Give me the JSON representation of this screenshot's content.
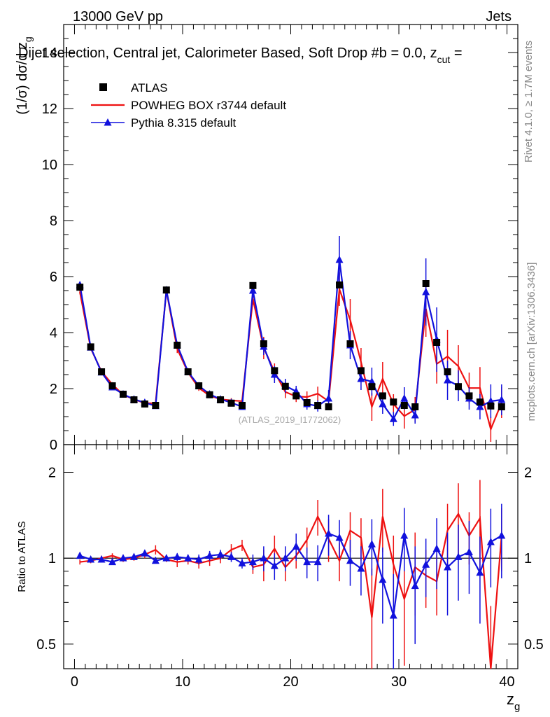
{
  "header": {
    "left": "13000 GeV pp",
    "right": "Jets",
    "title": "Dijet selection, Central jet, Calorimeter Based, Soft Drop #b = 0.0, z",
    "title_sub": "cut",
    "title_tail": " ="
  },
  "side": {
    "rivet": "Rivet 4.1.0, ≥ 1.7M events",
    "mcplots": "mcplots.cern.ch [arXiv:1306.3436]"
  },
  "watermark": "(ATLAS_2019_I1772062)",
  "colors": {
    "data": "#000000",
    "powheg": "#ee1111",
    "pythia": "#1111dd"
  },
  "chart_data": [
    {
      "type": "scatter",
      "name": "main",
      "ylabel": "(1/σ) dσ/d z_g",
      "ylabel_main": "(1/σ) dσ/d z",
      "ylabel_sub": "g",
      "xlim": [
        -1,
        41
      ],
      "ylim": [
        0,
        15
      ],
      "xticks": [
        0,
        10,
        20,
        30,
        40
      ],
      "yticks": [
        0,
        2,
        4,
        6,
        8,
        10,
        12,
        14
      ],
      "x": [
        0.5,
        1.5,
        2.5,
        3.5,
        4.5,
        5.5,
        6.5,
        7.5,
        8.5,
        9.5,
        10.5,
        11.5,
        12.5,
        13.5,
        14.5,
        15.5,
        16.5,
        17.5,
        18.5,
        19.5,
        20.5,
        21.5,
        22.5,
        23.5,
        24.5,
        25.5,
        26.5,
        27.5,
        28.5,
        29.5,
        30.5,
        31.5,
        32.5,
        33.5,
        34.5,
        35.5,
        36.5,
        37.5,
        38.5,
        39.5
      ],
      "series": [
        {
          "name": "ATLAS",
          "marker": "square",
          "values": [
            5.62,
            3.49,
            2.6,
            2.1,
            1.8,
            1.6,
            1.45,
            1.4,
            5.52,
            3.55,
            2.6,
            2.1,
            1.78,
            1.6,
            1.48,
            1.4,
            5.68,
            3.6,
            2.64,
            2.08,
            1.74,
            1.5,
            1.4,
            1.35,
            5.7,
            3.6,
            2.64,
            2.07,
            1.74,
            1.52,
            1.4,
            1.35,
            5.75,
            3.65,
            2.6,
            2.07,
            1.74,
            1.52,
            1.38,
            1.35
          ]
        },
        {
          "name": "POWHEG BOX r3744 default",
          "marker": "line",
          "values": [
            5.45,
            3.44,
            2.61,
            2.15,
            1.78,
            1.62,
            1.48,
            1.48,
            5.5,
            3.42,
            2.58,
            2.02,
            1.75,
            1.62,
            1.58,
            1.55,
            5.2,
            3.45,
            2.6,
            1.88,
            1.72,
            1.7,
            1.82,
            1.55,
            5.55,
            4.45,
            2.95,
            1.35,
            2.35,
            1.45,
            1.02,
            1.25,
            4.85,
            2.88,
            3.15,
            2.8,
            2.02,
            2.02,
            0.55,
            1.5
          ],
          "err": [
            0.08,
            0.08,
            0.08,
            0.08,
            0.06,
            0.06,
            0.06,
            0.06,
            0.1,
            0.15,
            0.1,
            0.1,
            0.08,
            0.06,
            0.08,
            0.08,
            0.2,
            0.4,
            0.3,
            0.22,
            0.2,
            0.2,
            0.25,
            0.25,
            0.6,
            0.75,
            0.5,
            0.5,
            0.6,
            0.35,
            0.45,
            0.45,
            1.0,
            0.7,
            0.95,
            0.75,
            0.55,
            0.75,
            0.45,
            0.55
          ]
        },
        {
          "name": "Pythia 8.315 default",
          "marker": "triangle",
          "values": [
            5.7,
            3.47,
            2.58,
            2.05,
            1.8,
            1.62,
            1.5,
            1.38,
            5.52,
            3.55,
            2.6,
            2.1,
            1.8,
            1.62,
            1.5,
            1.35,
            5.5,
            3.5,
            2.5,
            2.1,
            1.9,
            1.45,
            1.38,
            1.65,
            6.6,
            3.55,
            2.35,
            2.25,
            1.45,
            0.92,
            1.65,
            1.05,
            5.45,
            3.75,
            2.3,
            2.1,
            1.65,
            1.35,
            1.55,
            1.6
          ],
          "err": [
            0.08,
            0.08,
            0.08,
            0.1,
            0.06,
            0.06,
            0.06,
            0.06,
            0.1,
            0.12,
            0.1,
            0.1,
            0.08,
            0.07,
            0.08,
            0.07,
            0.25,
            0.3,
            0.3,
            0.25,
            0.2,
            0.2,
            0.2,
            0.3,
            0.85,
            0.5,
            0.4,
            0.5,
            0.35,
            0.25,
            0.4,
            0.3,
            1.2,
            1.15,
            0.7,
            0.55,
            0.4,
            0.45,
            0.6,
            0.55
          ]
        }
      ],
      "legend": {
        "placement": "top-left",
        "entries": [
          "ATLAS",
          "POWHEG BOX r3744 default",
          "Pythia 8.315 default"
        ]
      }
    },
    {
      "type": "line",
      "name": "ratio",
      "ylabel": "Ratio to ATLAS",
      "xlabel": "z_g",
      "xlabel_main": "z",
      "xlabel_sub": "g",
      "xlim": [
        -1,
        41
      ],
      "ylim": [
        0.41,
        2.5
      ],
      "log_y": true,
      "xticks": [
        0,
        10,
        20,
        30,
        40
      ],
      "yticks": [
        0.5,
        1,
        2
      ],
      "yticklabels": [
        "0.5",
        "1",
        "2"
      ],
      "reference": 1,
      "x": [
        0.5,
        1.5,
        2.5,
        3.5,
        4.5,
        5.5,
        6.5,
        7.5,
        8.5,
        9.5,
        10.5,
        11.5,
        12.5,
        13.5,
        14.5,
        15.5,
        16.5,
        17.5,
        18.5,
        19.5,
        20.5,
        21.5,
        22.5,
        23.5,
        24.5,
        25.5,
        26.5,
        27.5,
        28.5,
        29.5,
        30.5,
        31.5,
        32.5,
        33.5,
        34.5,
        35.5,
        36.5,
        37.5,
        38.5,
        39.5
      ],
      "series": [
        {
          "name": "POWHEG BOX r3744 default",
          "values": [
            0.97,
            0.98,
            1.0,
            1.02,
            0.99,
            1.0,
            1.03,
            1.07,
            0.99,
            0.97,
            0.98,
            0.96,
            0.98,
            1.0,
            1.07,
            1.11,
            0.93,
            0.95,
            1.08,
            0.93,
            1.02,
            1.16,
            1.4,
            1.17,
            0.98,
            1.25,
            1.18,
            0.62,
            1.4,
            0.95,
            0.72,
            0.93,
            0.87,
            0.83,
            1.25,
            1.43,
            1.2,
            1.38,
            0.38,
            1.2
          ],
          "err": [
            0.02,
            0.02,
            0.02,
            0.02,
            0.02,
            0.02,
            0.03,
            0.04,
            0.02,
            0.04,
            0.03,
            0.04,
            0.04,
            0.04,
            0.05,
            0.05,
            0.05,
            0.12,
            0.12,
            0.1,
            0.1,
            0.12,
            0.2,
            0.2,
            0.15,
            0.2,
            0.2,
            0.3,
            0.35,
            0.25,
            0.3,
            0.3,
            0.2,
            0.2,
            0.3,
            0.4,
            0.25,
            0.5,
            0.3,
            0.3
          ]
        },
        {
          "name": "Pythia 8.315 default",
          "values": [
            1.02,
            0.99,
            0.99,
            0.97,
            1.0,
            1.01,
            1.04,
            0.98,
            1.0,
            1.01,
            1.0,
            0.99,
            1.02,
            1.03,
            1.01,
            0.96,
            0.97,
            1.0,
            0.94,
            1.0,
            1.1,
            0.97,
            0.97,
            1.22,
            1.18,
            0.98,
            0.92,
            1.12,
            0.84,
            0.63,
            1.2,
            0.8,
            0.95,
            1.08,
            0.93,
            1.01,
            1.05,
            0.89,
            1.14,
            1.2
          ],
          "err": [
            0.02,
            0.02,
            0.02,
            0.02,
            0.02,
            0.02,
            0.02,
            0.02,
            0.02,
            0.03,
            0.03,
            0.04,
            0.04,
            0.04,
            0.04,
            0.04,
            0.06,
            0.1,
            0.1,
            0.1,
            0.12,
            0.12,
            0.14,
            0.2,
            0.18,
            0.18,
            0.18,
            0.25,
            0.25,
            0.25,
            0.3,
            0.3,
            0.22,
            0.3,
            0.3,
            0.3,
            0.3,
            0.3,
            0.35,
            0.35
          ]
        }
      ]
    }
  ]
}
